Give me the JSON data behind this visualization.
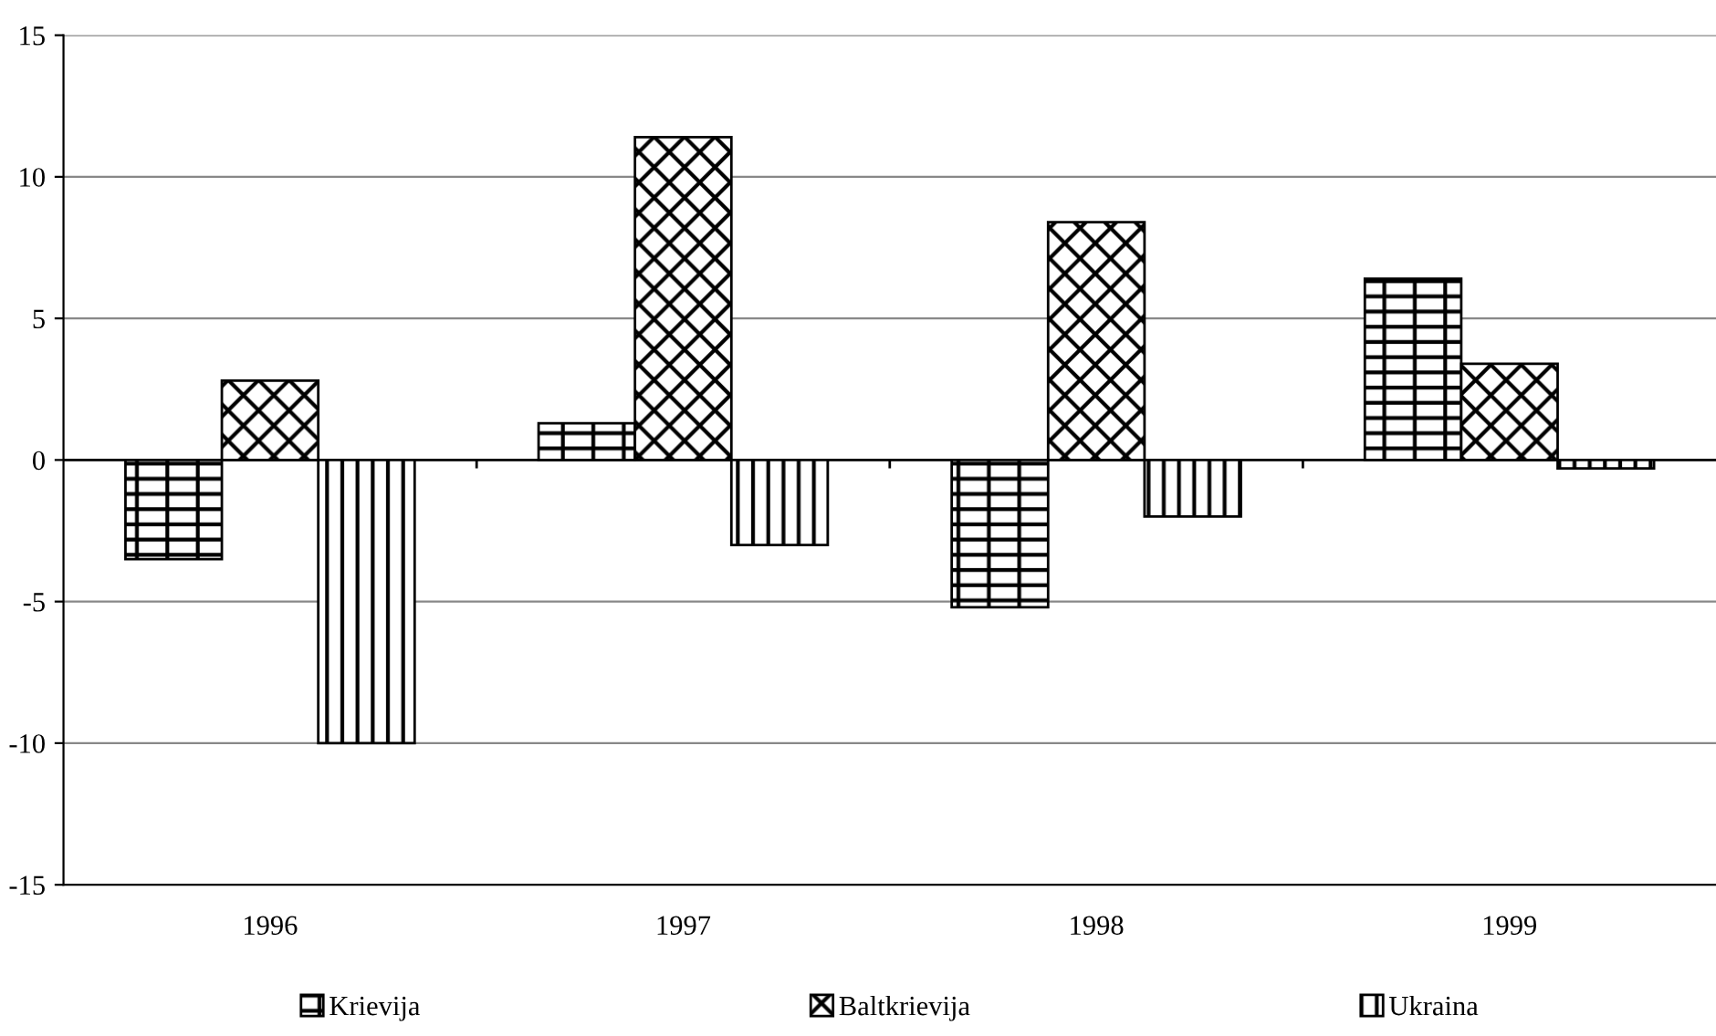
{
  "chart_data": {
    "type": "bar",
    "categories": [
      "1996",
      "1997",
      "1998",
      "1999"
    ],
    "series": [
      {
        "name": "Krievija",
        "color": "#000000",
        "values": [
          -3.5,
          1.3,
          -5.2,
          6.4
        ]
      },
      {
        "name": "Baltkrievija",
        "color": "#000000",
        "values": [
          2.8,
          11.4,
          8.4,
          3.4
        ]
      },
      {
        "name": "Ukraina",
        "color": "#000000",
        "values": [
          -10,
          -3,
          -2,
          -0.3
        ]
      }
    ],
    "ylim": [
      -15,
      15
    ],
    "yticks": [
      -15,
      -10,
      -5,
      0,
      5,
      10,
      15
    ],
    "grid": "y",
    "legend": "bottom"
  }
}
